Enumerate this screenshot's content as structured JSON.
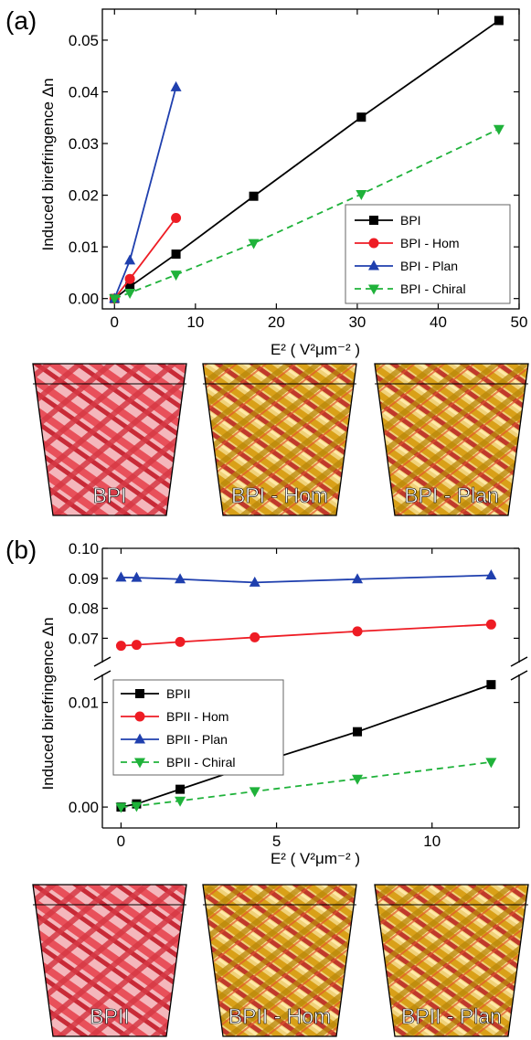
{
  "colors": {
    "BPI": "#000000",
    "Hom": "#ee1c24",
    "Plan": "#1f3fae",
    "Chiral": "#1fb23a",
    "render_red": "#e8505a",
    "render_gold": "#d9a018"
  },
  "chart_data": [
    {
      "panel": "(a)",
      "type": "line",
      "xlabel": "E² ( V²μm⁻² )",
      "ylabel": "Induced birefringence Δn",
      "xlim": [
        -1.5,
        50
      ],
      "ylim": [
        -0.002,
        0.056
      ],
      "xticks": [
        "0",
        "10",
        "20",
        "30",
        "40",
        "50"
      ],
      "yticks": [
        "0.00",
        "0.01",
        "0.02",
        "0.03",
        "0.04",
        "0.05"
      ],
      "legend_position": "bottom-right",
      "series": [
        {
          "name": "BPI",
          "color": "#000000",
          "marker": "square",
          "dash": false,
          "x": [
            0,
            1.9,
            7.6,
            17.2,
            30.5,
            47.5
          ],
          "y": [
            0.0,
            0.0023,
            0.0086,
            0.0198,
            0.0351,
            0.0538
          ]
        },
        {
          "name": "BPI - Hom",
          "color": "#ee1c24",
          "marker": "circle",
          "dash": false,
          "x": [
            0,
            1.9,
            7.6
          ],
          "y": [
            0.0,
            0.0038,
            0.0156
          ]
        },
        {
          "name": "BPI - Plan",
          "color": "#1f3fae",
          "marker": "triangle-up",
          "dash": false,
          "x": [
            0,
            1.9,
            7.6
          ],
          "y": [
            0.0,
            0.0074,
            0.0409
          ]
        },
        {
          "name": "BPI - Chiral",
          "color": "#1fb23a",
          "marker": "triangle-down",
          "dash": true,
          "x": [
            0,
            1.9,
            7.6,
            17.2,
            30.5,
            47.5
          ],
          "y": [
            0.0,
            0.0011,
            0.0046,
            0.0107,
            0.0202,
            0.0328
          ]
        }
      ],
      "render_labels": [
        "BPI",
        "BPI - Hom",
        "BPI - Plan"
      ]
    },
    {
      "panel": "(b)",
      "type": "line",
      "xlabel": "E² ( V²μm⁻² )",
      "ylabel": "Induced birefringence Δn",
      "xlim": [
        -0.6,
        12.8
      ],
      "ylim_lower": [
        -0.002,
        0.0125
      ],
      "ylim_upper": [
        0.0625,
        0.1
      ],
      "broken_axis": true,
      "xticks": [
        "0",
        "5",
        "10"
      ],
      "yticks_lower": [
        "0.00",
        "0.01"
      ],
      "yticks_upper": [
        "0.07",
        "0.08",
        "0.09",
        "0.10"
      ],
      "legend_position": "middle-left",
      "series": [
        {
          "name": "BPII",
          "color": "#000000",
          "marker": "square",
          "dash": false,
          "x": [
            0,
            0.5,
            1.9,
            4.3,
            7.6,
            11.9
          ],
          "y": [
            0.0,
            0.0003,
            0.0017,
            0.0041,
            0.0072,
            0.0117
          ]
        },
        {
          "name": "BPII - Hom",
          "color": "#ee1c24",
          "marker": "circle",
          "dash": false,
          "x": [
            0,
            0.5,
            1.9,
            4.3,
            7.6,
            11.9
          ],
          "y": [
            0.0675,
            0.0678,
            0.0688,
            0.0703,
            0.0723,
            0.0746
          ]
        },
        {
          "name": "BPII - Plan",
          "color": "#1f3fae",
          "marker": "triangle-up",
          "dash": false,
          "x": [
            0,
            0.5,
            1.9,
            4.3,
            7.6,
            11.9
          ],
          "y": [
            0.0903,
            0.0902,
            0.0897,
            0.0886,
            0.0897,
            0.091
          ]
        },
        {
          "name": "BPII - Chiral",
          "color": "#1fb23a",
          "marker": "triangle-down",
          "dash": true,
          "x": [
            0,
            0.5,
            1.9,
            4.3,
            7.6,
            11.9
          ],
          "y": [
            0.0,
            0.0001,
            0.0006,
            0.0015,
            0.0027,
            0.0043
          ]
        }
      ],
      "render_labels": [
        "BPII",
        "BPII - Hom",
        "BPII - Plan"
      ]
    }
  ]
}
